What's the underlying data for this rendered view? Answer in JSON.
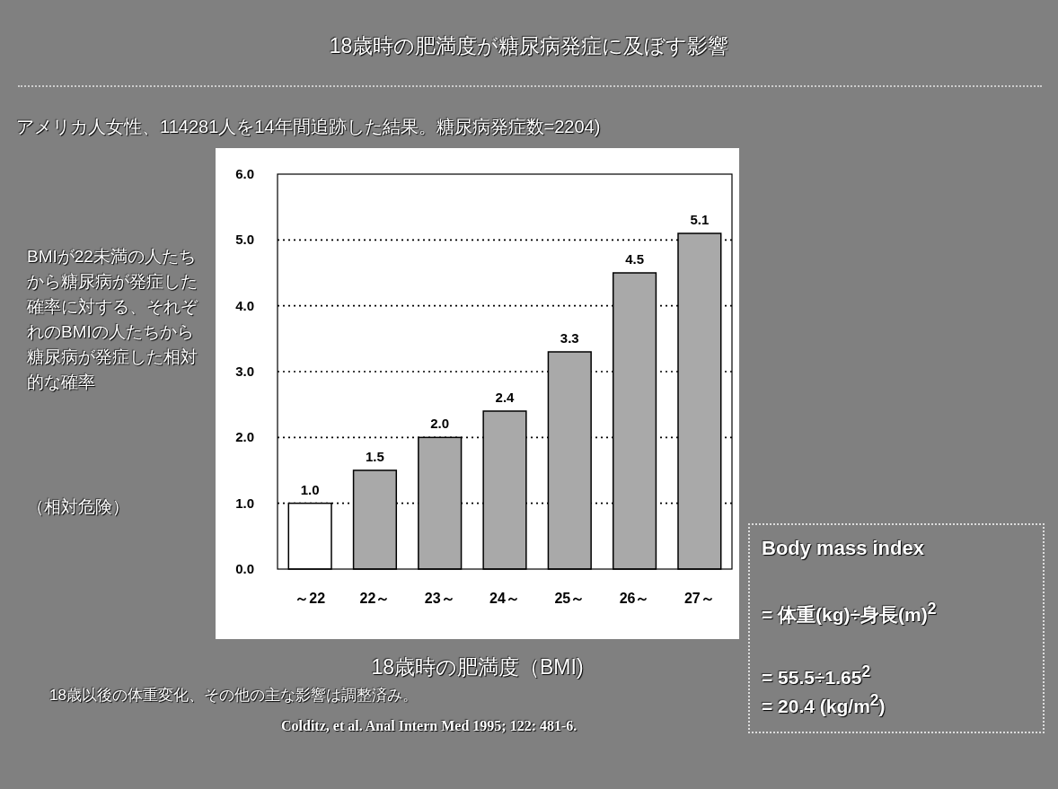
{
  "chart_data": {
    "type": "bar",
    "title": "18歳時の肥満度が糖尿病発症に及ぼす影響",
    "subtitle": "アメリカ人女性、114281人を14年間追跡した結果。糖尿病発症数=2204)",
    "xlabel": "18歳時の肥満度（BMI)",
    "ylabel": "BMIが22未満の人たちから糖尿病が発症した確率に対する、それぞれのBMIの人たちから糖尿病が発症した相対的な確率",
    "categories": [
      "～22",
      "22～",
      "23～",
      "24～",
      "25～",
      "26～",
      "27～"
    ],
    "values": [
      1.0,
      1.5,
      2.0,
      2.4,
      3.3,
      4.5,
      5.1
    ],
    "value_labels": [
      "1.0",
      "1.5",
      "2.0",
      "2.4",
      "3.3",
      "4.5",
      "5.1"
    ],
    "colors": [
      "#ffffff",
      "#a9a9a9",
      "#a9a9a9",
      "#a9a9a9",
      "#a9a9a9",
      "#a9a9a9",
      "#a9a9a9"
    ],
    "ylim": [
      0,
      6
    ],
    "yticks": [
      {
        "value": 0,
        "label": "0.0"
      },
      {
        "value": 1,
        "label": "1.0"
      },
      {
        "value": 2,
        "label": "2.0"
      },
      {
        "value": 3,
        "label": "3.0"
      },
      {
        "value": 4,
        "label": "4.0"
      },
      {
        "value": 5,
        "label": "5.0"
      },
      {
        "value": 6,
        "label": "6.0"
      }
    ],
    "grid": "y",
    "annotations": [
      "（相対危険）",
      "Body mass index",
      "= 体重(kg)÷身長(m)$^{2}$",
      "= 55.5÷1.65$^{2}$",
      "= 20.4 (kg/m$^{2}$)",
      "18歳以後の体重変化、その他の主な影響は調整済み。",
      "Colditz, et al. Anal Intern Med 1995; 122: 481-6."
    ]
  }
}
